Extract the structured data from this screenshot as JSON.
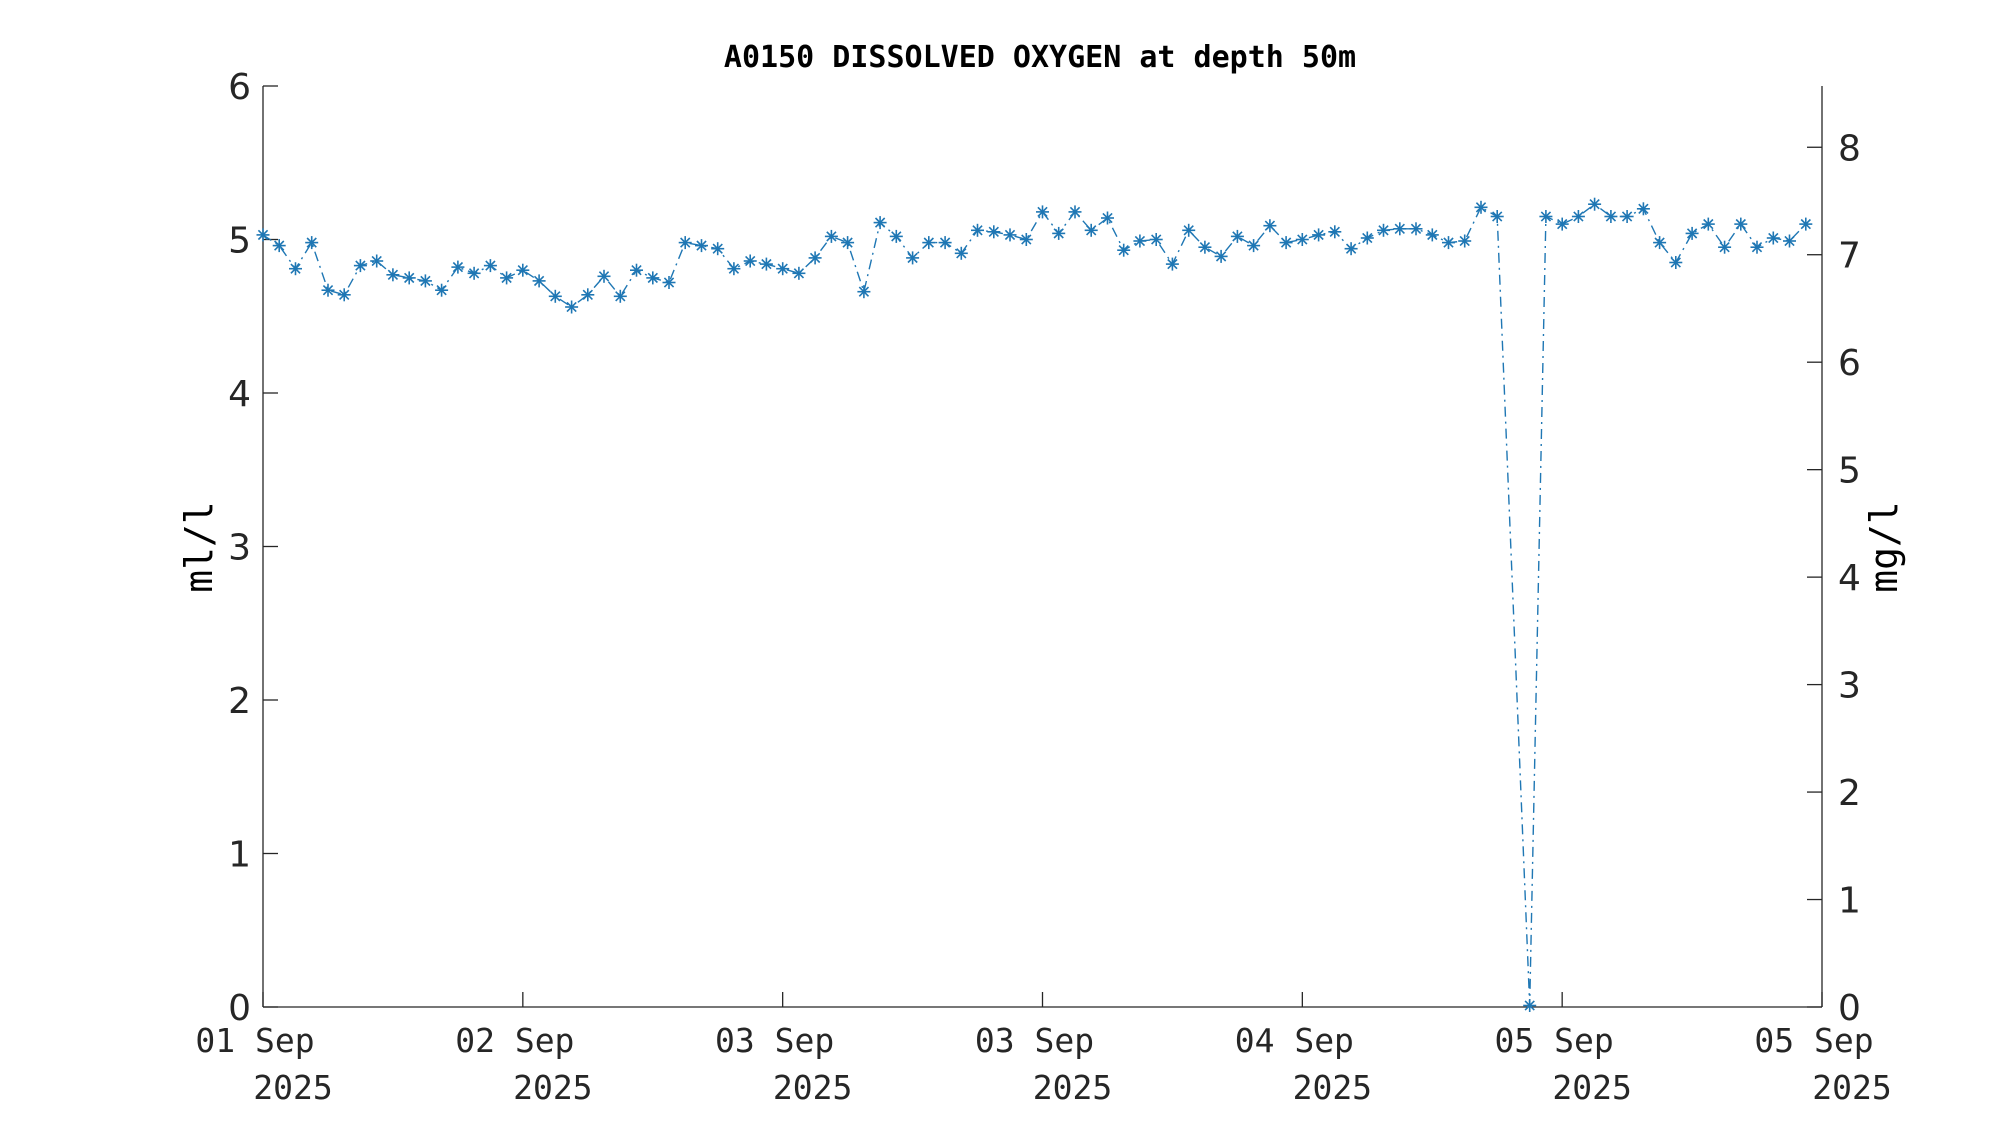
{
  "chart_data": {
    "type": "line",
    "title": "A0150 DISSOLVED OXYGEN at depth 50m",
    "ylabel": "ml/l",
    "ylabel_right": "mg/l",
    "xlabel": "",
    "ylim": [
      0,
      6
    ],
    "ylim_right": [
      0,
      8.57
    ],
    "yticks": [
      "0",
      "1",
      "2",
      "3",
      "4",
      "5",
      "6"
    ],
    "yticks_right": [
      "0",
      "1",
      "2",
      "3",
      "4",
      "5",
      "6",
      "7",
      "8"
    ],
    "xlim": [
      0,
      96
    ],
    "xticks": [
      {
        "x": 0,
        "line1": "01 Sep",
        "line2": "2025"
      },
      {
        "x": 16,
        "line1": "02 Sep",
        "line2": "2025"
      },
      {
        "x": 32,
        "line1": "03 Sep",
        "line2": "2025"
      },
      {
        "x": 48,
        "line1": "03 Sep",
        "line2": "2025"
      },
      {
        "x": 64,
        "line1": "04 Sep",
        "line2": "2025"
      },
      {
        "x": 80,
        "line1": "05 Sep",
        "line2": "2025"
      },
      {
        "x": 96,
        "line1": "05 Sep",
        "line2": "2025"
      }
    ],
    "color": "#1f77b4",
    "marker": "asterisk",
    "line_style": "dash-dot",
    "grid": false,
    "series": [
      {
        "values": [
          5.03,
          4.96,
          4.81,
          4.98,
          4.67,
          4.64,
          4.83,
          4.86,
          4.77,
          4.75,
          4.73,
          4.67,
          4.82,
          4.78,
          4.83,
          4.75,
          4.8,
          4.73,
          4.63,
          4.56,
          4.64,
          4.76,
          4.63,
          4.8,
          4.75,
          4.72,
          4.98,
          4.96,
          4.94,
          4.81,
          4.86,
          4.84,
          4.81,
          4.78,
          4.88,
          5.02,
          4.98,
          4.66,
          5.11,
          5.02,
          4.88,
          4.98,
          4.98,
          4.91,
          5.06,
          5.05,
          5.03,
          5.0,
          5.18,
          5.04,
          5.18,
          5.06,
          5.14,
          4.93,
          4.99,
          5.0,
          4.84,
          5.06,
          4.95,
          4.89,
          5.02,
          4.96,
          5.09,
          4.98,
          5.0,
          5.03,
          5.05,
          4.94,
          5.01,
          5.06,
          5.07,
          5.07,
          5.03,
          4.98,
          4.99,
          5.21,
          5.15,
          null,
          0.01,
          5.15,
          5.1,
          5.15,
          5.23,
          5.15,
          5.15,
          5.2,
          4.98,
          4.85,
          5.04,
          5.1,
          4.95,
          5.1,
          4.95,
          5.01,
          4.99,
          5.1
        ]
      }
    ]
  }
}
